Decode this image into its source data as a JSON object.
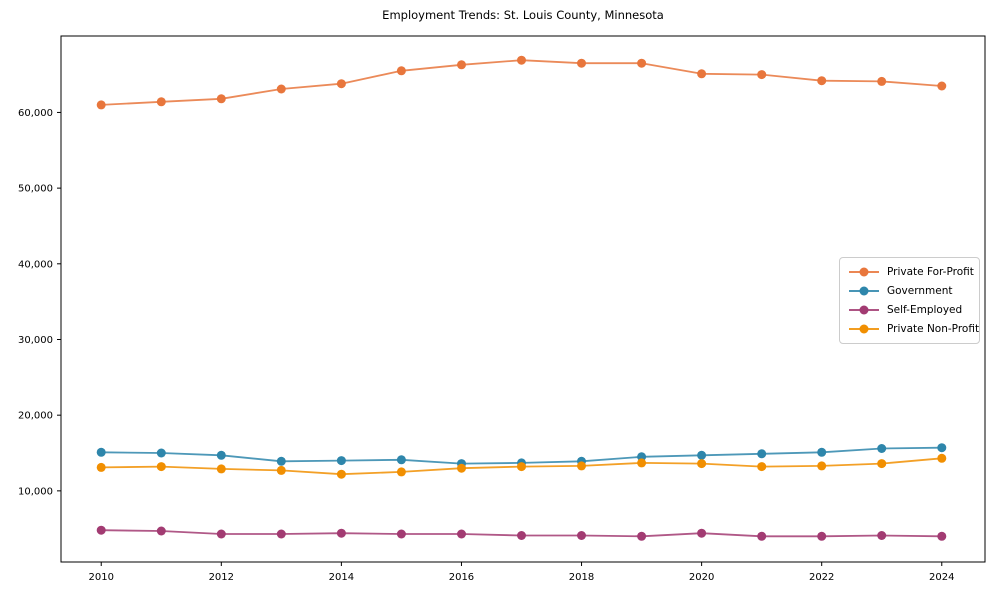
{
  "chart_data": {
    "type": "line",
    "title": "Employment Trends: St. Louis County, Minnesota",
    "xlabel": "",
    "ylabel": "",
    "grid": false,
    "legend_position": "right-center",
    "xlim": [
      2009.33,
      2024.72
    ],
    "ylim": [
      600,
      70100
    ],
    "xticks": [
      2010,
      2012,
      2014,
      2016,
      2018,
      2020,
      2022,
      2024
    ],
    "yticks": [
      10000,
      20000,
      30000,
      40000,
      50000,
      60000
    ],
    "x": [
      2010,
      2011,
      2012,
      2013,
      2014,
      2015,
      2016,
      2017,
      2018,
      2019,
      2020,
      2021,
      2022,
      2023,
      2024
    ],
    "series": [
      {
        "name": "Private For-Profit",
        "color": "#E8763C",
        "values": [
          61000,
          61400,
          61800,
          63100,
          63800,
          65500,
          66300,
          66900,
          66500,
          66500,
          65100,
          65000,
          64200,
          64100,
          63500
        ]
      },
      {
        "name": "Government",
        "color": "#2E86AB",
        "values": [
          15100,
          15000,
          14700,
          13900,
          14000,
          14100,
          13600,
          13700,
          13900,
          14500,
          14700,
          14900,
          15100,
          15600,
          15700
        ]
      },
      {
        "name": "Self-Employed",
        "color": "#A23B72",
        "values": [
          4800,
          4700,
          4300,
          4300,
          4400,
          4300,
          4300,
          4100,
          4100,
          4000,
          4400,
          4000,
          4000,
          4100,
          4000
        ]
      },
      {
        "name": "Private Non-Profit",
        "color": "#F18F01",
        "values": [
          13100,
          13200,
          12900,
          12700,
          12200,
          12500,
          13000,
          13200,
          13300,
          13700,
          13600,
          13200,
          13300,
          13600,
          14300
        ]
      }
    ]
  }
}
